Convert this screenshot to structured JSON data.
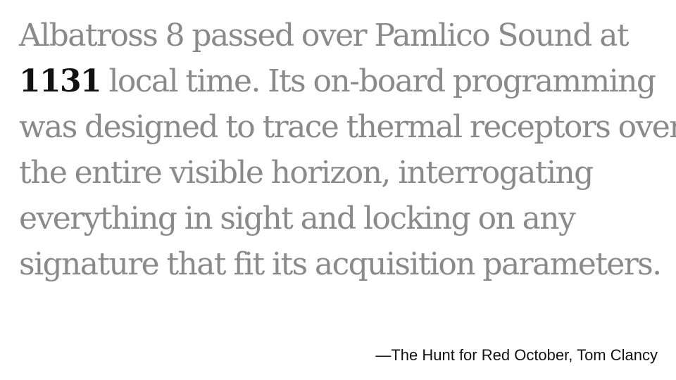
{
  "quote": {
    "lines": [
      "Albatross 8 passed over Pamlico Sound at",
      "local time. Its on-board programming",
      "was designed to trace thermal receptors over",
      "the entire visible horizon, interrogating",
      "everything in sight and locking on any",
      "signature that fit its acquisition parameters."
    ],
    "highlight_time": "1131",
    "highlight_color": "#111111",
    "text_color": "#8a8a8a"
  },
  "attribution": {
    "text": "—The Hunt for Red October, Tom Clancy"
  }
}
